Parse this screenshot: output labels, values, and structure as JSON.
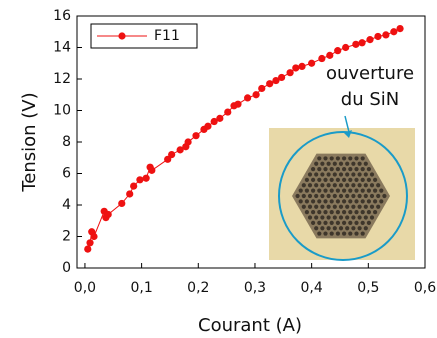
{
  "chart_data": {
    "type": "line",
    "xlabel": "Courant (A)",
    "ylabel": "Tension (V)",
    "annotation": [
      "ouverture",
      "du SiN"
    ],
    "x": [
      0.005,
      0.009,
      0.012,
      0.016,
      0.034,
      0.037,
      0.041,
      0.065,
      0.079,
      0.086,
      0.097,
      0.108,
      0.115,
      0.118,
      0.146,
      0.153,
      0.168,
      0.178,
      0.182,
      0.196,
      0.21,
      0.217,
      0.228,
      0.238,
      0.252,
      0.263,
      0.27,
      0.287,
      0.302,
      0.312,
      0.326,
      0.337,
      0.347,
      0.362,
      0.372,
      0.383,
      0.4,
      0.418,
      0.432,
      0.446,
      0.46,
      0.478,
      0.489,
      0.503,
      0.517,
      0.531,
      0.545,
      0.556
    ],
    "series": [
      {
        "name": "F11",
        "color": "#ee1111",
        "values": [
          1.2,
          1.6,
          2.3,
          2.0,
          3.6,
          3.2,
          3.4,
          4.1,
          4.7,
          5.2,
          5.6,
          5.7,
          6.4,
          6.2,
          6.9,
          7.2,
          7.5,
          7.7,
          8.0,
          8.4,
          8.8,
          9.0,
          9.3,
          9.5,
          9.9,
          10.3,
          10.4,
          10.8,
          11.0,
          11.4,
          11.7,
          11.9,
          12.1,
          12.4,
          12.7,
          12.8,
          13.0,
          13.3,
          13.5,
          13.8,
          14.0,
          14.2,
          14.3,
          14.5,
          14.7,
          14.8,
          15.0,
          15.2
        ]
      }
    ],
    "xlim": [
      -0.014,
      0.6
    ],
    "xticks": [
      {
        "value": 0,
        "label": "0,0"
      },
      {
        "value": 0.1,
        "label": "0,1"
      },
      {
        "value": 0.2,
        "label": "0,2"
      },
      {
        "value": 0.3,
        "label": "0,3"
      },
      {
        "value": 0.4,
        "label": "0,4"
      },
      {
        "value": 0.5,
        "label": "0,5"
      },
      {
        "value": 0.6,
        "label": "0,6"
      }
    ],
    "ylim": [
      0,
      16
    ],
    "yticks": [
      0,
      2,
      4,
      6,
      8,
      10,
      12,
      14,
      16
    ],
    "legend": "upper left"
  }
}
